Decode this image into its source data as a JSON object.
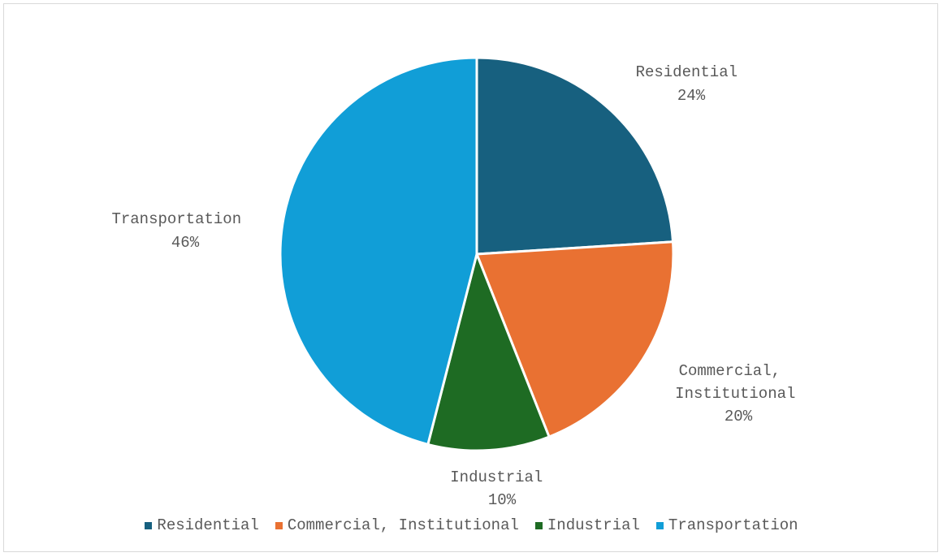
{
  "chart_data": {
    "type": "pie",
    "title": "",
    "slices": [
      {
        "label": "Residential",
        "value": 24,
        "value_label": "24%",
        "color": "#17607f"
      },
      {
        "label": "Commercial, Institutional",
        "value": 20,
        "value_label": "20%",
        "color": "#e97132"
      },
      {
        "label": "Industrial",
        "value": 10,
        "value_label": "10%",
        "color": "#1e6b23"
      },
      {
        "label": "Transportation",
        "value": 46,
        "value_label": "46%",
        "color": "#119ed7"
      }
    ],
    "legend": {
      "placement": "bottom",
      "entries": [
        "Residential",
        "Commercial, Institutional",
        "Industrial",
        "Transportation"
      ]
    },
    "data_label_lines": {
      "residential": [
        "Residential",
        "24%"
      ],
      "commercial": [
        "Commercial,",
        "Institutional",
        "20%"
      ],
      "industrial": [
        "Industrial",
        "10%"
      ],
      "transportation": [
        "Transportation",
        "46%"
      ]
    }
  }
}
